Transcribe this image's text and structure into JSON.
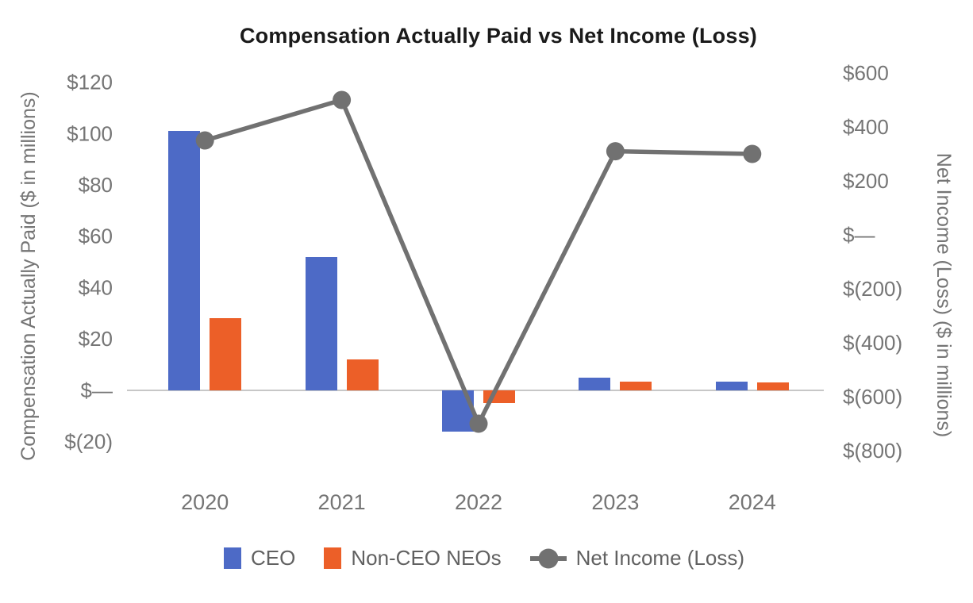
{
  "title": "Compensation Actually Paid vs Net Income (Loss)",
  "colors": {
    "ceo_bar": "#4d6ac6",
    "non_ceo_bar": "#ec5f28",
    "net_income_line": "#717171",
    "axis_text": "#757575",
    "title_text": "#1a1a1a",
    "zero_baseline": "#c7c7c7"
  },
  "chart_data": {
    "type": "combo-bar-line",
    "categories": [
      "2020",
      "2021",
      "2022",
      "2023",
      "2024"
    ],
    "series": [
      {
        "name": "CEO",
        "type": "bar",
        "axis": "left",
        "color": "#4d6ac6",
        "values": [
          101,
          52,
          -16,
          5,
          3.5
        ]
      },
      {
        "name": "Non-CEO NEOs",
        "type": "bar",
        "axis": "left",
        "color": "#ec5f28",
        "values": [
          28,
          12,
          -5,
          3.5,
          3
        ]
      },
      {
        "name": "Net Income (Loss)",
        "type": "line",
        "axis": "right",
        "color": "#717171",
        "values": [
          350,
          500,
          -700,
          310,
          300
        ]
      }
    ],
    "left_axis": {
      "title": "Compensation Actually Paid ($ in millions)",
      "range": [
        -20,
        120
      ],
      "ticks": [
        {
          "label": "$120",
          "value": 120
        },
        {
          "label": "$100",
          "value": 100
        },
        {
          "label": "$80",
          "value": 80
        },
        {
          "label": "$60",
          "value": 60
        },
        {
          "label": "$40",
          "value": 40
        },
        {
          "label": "$20",
          "value": 20
        },
        {
          "label": "$—",
          "value": 0
        },
        {
          "label": "$(20)",
          "value": -20
        }
      ]
    },
    "right_axis": {
      "title": "Net Income (Loss) ($ in millions)",
      "range": [
        -800,
        600
      ],
      "ticks": [
        {
          "label": "$600",
          "value": 600
        },
        {
          "label": "$400",
          "value": 400
        },
        {
          "label": "$200",
          "value": 200
        },
        {
          "label": "$—",
          "value": 0
        },
        {
          "label": "$(200)",
          "value": -200
        },
        {
          "label": "$(400)",
          "value": -400
        },
        {
          "label": "$(600)",
          "value": -600
        },
        {
          "label": "$(800)",
          "value": -800
        }
      ]
    },
    "legend_position": "bottom",
    "grid": "zero-baseline-only"
  }
}
